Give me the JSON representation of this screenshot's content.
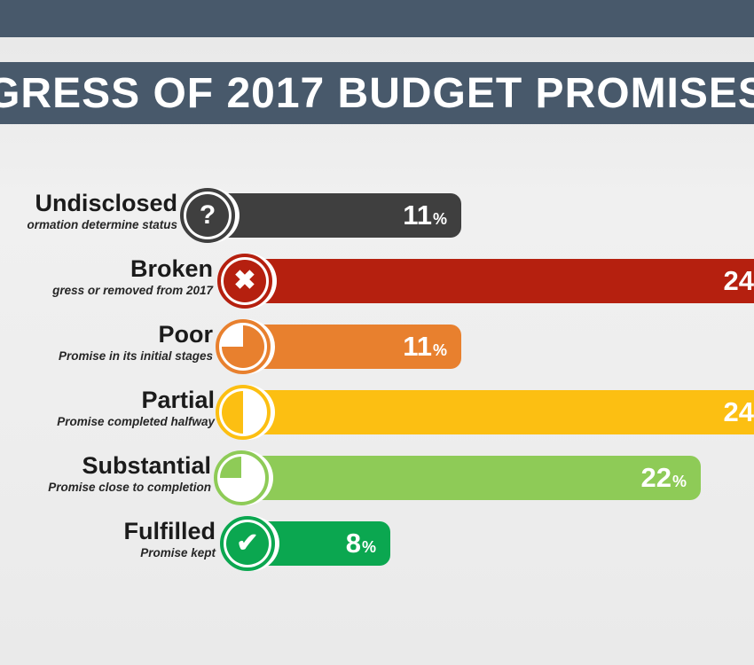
{
  "header": {
    "band_color": "#48596b",
    "title": "GRESS OF 2017 BUDGET PROMISES"
  },
  "chart_data": {
    "type": "bar",
    "orientation": "horizontal",
    "title": "GRESS OF 2017 BUDGET PROMISES",
    "categories": [
      "Undisclosed",
      "Broken",
      "Poor",
      "Partial",
      "Substantial",
      "Fulfilled"
    ],
    "values": [
      11,
      24,
      11,
      24,
      22,
      8
    ],
    "unit": "%",
    "category_descriptions": [
      "ormation determine status",
      "gress or removed from 2017",
      "Promise in its initial stages",
      "Promise completed halfway",
      "Promise close to completion",
      "Promise kept"
    ],
    "bar_colors": [
      "#3f3f3f",
      "#b5200f",
      "#e8802e",
      "#fcbf12",
      "#8ecb57",
      "#0ba750"
    ],
    "value_labels_visible": [
      "11%",
      "24",
      "11%",
      "24",
      "22%",
      "8%"
    ],
    "icons": [
      "question-icon",
      "cross-icon",
      "quarter-pie-icon",
      "half-pie-icon",
      "three-quarter-pie-icon",
      "check-icon"
    ],
    "xlim": [
      0,
      24
    ],
    "grid": false,
    "legend": false
  },
  "rows": [
    {
      "label": "Undisclosed",
      "subtitle": "ormation determine status",
      "value": "11",
      "unit": "%",
      "color": "#3f3f3f",
      "icon": "question-icon",
      "glyph": "?"
    },
    {
      "label": "Broken",
      "subtitle": "gress or removed from 2017",
      "value": "24",
      "unit": "%",
      "color": "#b5200f",
      "icon": "cross-icon",
      "glyph": "✖"
    },
    {
      "label": "Poor",
      "subtitle": "Promise in its initial stages",
      "value": "11",
      "unit": "%",
      "color": "#e8802e",
      "icon": "quarter-pie-icon",
      "glyph": ""
    },
    {
      "label": "Partial",
      "subtitle": "Promise completed halfway",
      "value": "24",
      "unit": "%",
      "color": "#fcbf12",
      "icon": "half-pie-icon",
      "glyph": ""
    },
    {
      "label": "Substantial",
      "subtitle": "Promise close to completion",
      "value": "22",
      "unit": "%",
      "color": "#8ecb57",
      "icon": "three-quarter-pie-icon",
      "glyph": ""
    },
    {
      "label": "Fulfilled",
      "subtitle": "Promise kept",
      "value": "8",
      "unit": "%",
      "color": "#0ba750",
      "icon": "check-icon",
      "glyph": "✔"
    }
  ]
}
